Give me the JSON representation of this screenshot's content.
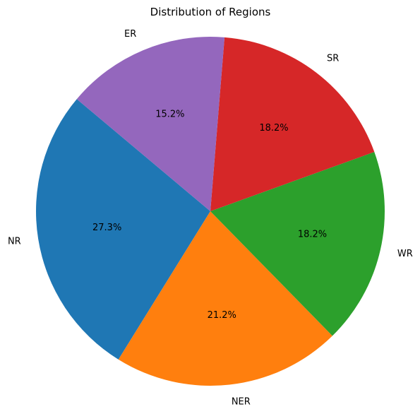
{
  "chart_data": {
    "type": "pie",
    "title": "Distribution of Regions",
    "slices": [
      {
        "label": "NR",
        "value": 27.3,
        "pct_label": "27.3%",
        "color": "#1f77b4"
      },
      {
        "label": "NER",
        "value": 21.2,
        "pct_label": "21.2%",
        "color": "#ff7f0e"
      },
      {
        "label": "WR",
        "value": 18.2,
        "pct_label": "18.2%",
        "color": "#2ca02c"
      },
      {
        "label": "SR",
        "value": 18.2,
        "pct_label": "18.2%",
        "color": "#d62728"
      },
      {
        "label": "ER",
        "value": 15.2,
        "pct_label": "15.2%",
        "color": "#9467bd"
      }
    ],
    "legend": "none"
  }
}
